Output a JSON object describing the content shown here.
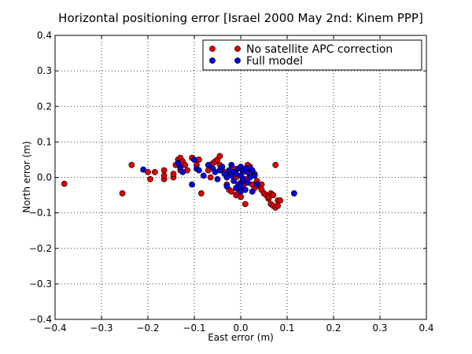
{
  "chart_data": {
    "type": "scatter",
    "title": "Horizontal positioning error [Israel 2000 May 2nd: Kinem PPP]",
    "xlabel": "East error (m)",
    "ylabel": "North error (m)",
    "xlim": [
      -0.4,
      0.4
    ],
    "ylim": [
      -0.4,
      0.4
    ],
    "xticks": [
      -0.4,
      -0.3,
      -0.2,
      -0.1,
      0.0,
      0.1,
      0.2,
      0.3,
      0.4
    ],
    "yticks": [
      -0.4,
      -0.3,
      -0.2,
      -0.1,
      0.0,
      0.1,
      0.2,
      0.3,
      0.4
    ],
    "xtick_labels": [
      "−0.4",
      "−0.3",
      "−0.2",
      "−0.1",
      "0.0",
      "0.1",
      "0.2",
      "0.3",
      "0.4"
    ],
    "ytick_labels": [
      "−0.4",
      "−0.3",
      "−0.2",
      "−0.1",
      "0.0",
      "0.1",
      "0.2",
      "0.3",
      "0.4"
    ],
    "grid": true,
    "legend_position": "top-right",
    "series": [
      {
        "name": "No satellite APC correction",
        "color": "#dd0000",
        "points": [
          [
            -0.38,
            -0.018
          ],
          [
            -0.255,
            -0.045
          ],
          [
            -0.235,
            0.035
          ],
          [
            -0.2,
            0.015
          ],
          [
            -0.195,
            -0.005
          ],
          [
            -0.185,
            0.015
          ],
          [
            -0.165,
            -0.005
          ],
          [
            -0.165,
            0.005
          ],
          [
            -0.165,
            0.02
          ],
          [
            -0.145,
            0.0
          ],
          [
            -0.145,
            0.01
          ],
          [
            -0.14,
            0.035
          ],
          [
            -0.135,
            0.05
          ],
          [
            -0.13,
            0.055
          ],
          [
            -0.13,
            0.02
          ],
          [
            -0.125,
            0.045
          ],
          [
            -0.12,
            0.035
          ],
          [
            -0.115,
            0.02
          ],
          [
            -0.105,
            0.055
          ],
          [
            -0.095,
            0.035
          ],
          [
            -0.09,
            0.05
          ],
          [
            -0.085,
            -0.045
          ],
          [
            -0.07,
            0.02
          ],
          [
            -0.065,
            0.0
          ],
          [
            -0.06,
            0.04
          ],
          [
            -0.055,
            0.045
          ],
          [
            -0.05,
            0.05
          ],
          [
            -0.045,
            0.06
          ],
          [
            -0.045,
            0.035
          ],
          [
            -0.04,
            0.02
          ],
          [
            -0.035,
            0.015
          ],
          [
            -0.03,
            0.005
          ],
          [
            -0.03,
            -0.02
          ],
          [
            -0.025,
            -0.035
          ],
          [
            -0.02,
            -0.04
          ],
          [
            -0.015,
            0.025
          ],
          [
            -0.01,
            -0.05
          ],
          [
            -0.005,
            -0.03
          ],
          [
            -0.005,
            -0.045
          ],
          [
            0.0,
            -0.015
          ],
          [
            0.0,
            -0.055
          ],
          [
            0.005,
            -0.025
          ],
          [
            0.01,
            -0.075
          ],
          [
            0.015,
            0.035
          ],
          [
            0.02,
            0.005
          ],
          [
            0.025,
            -0.02
          ],
          [
            0.03,
            0.01
          ],
          [
            0.035,
            -0.01
          ],
          [
            0.04,
            -0.025
          ],
          [
            0.045,
            -0.02
          ],
          [
            0.045,
            -0.035
          ],
          [
            0.05,
            -0.045
          ],
          [
            0.055,
            -0.05
          ],
          [
            0.06,
            -0.06
          ],
          [
            0.06,
            -0.055
          ],
          [
            0.065,
            -0.045
          ],
          [
            0.065,
            -0.075
          ],
          [
            0.07,
            -0.08
          ],
          [
            0.07,
            -0.05
          ],
          [
            0.075,
            -0.085
          ],
          [
            0.075,
            0.035
          ],
          [
            0.08,
            -0.065
          ],
          [
            0.08,
            -0.08
          ],
          [
            0.085,
            -0.065
          ],
          [
            0.005,
            0.015
          ],
          [
            -0.02,
            0.01
          ],
          [
            0.02,
            0.03
          ],
          [
            0.01,
            -0.005
          ],
          [
            -0.01,
            0.0
          ],
          [
            0.03,
            -0.03
          ]
        ]
      },
      {
        "name": "Full model",
        "color": "#0000dd",
        "points": [
          [
            -0.21,
            0.022
          ],
          [
            -0.135,
            0.04
          ],
          [
            -0.13,
            0.028
          ],
          [
            -0.125,
            0.015
          ],
          [
            -0.105,
            -0.02
          ],
          [
            -0.1,
            0.05
          ],
          [
            -0.095,
            0.025
          ],
          [
            -0.09,
            0.02
          ],
          [
            -0.08,
            0.005
          ],
          [
            -0.07,
            0.035
          ],
          [
            -0.06,
            0.025
          ],
          [
            -0.055,
            0.015
          ],
          [
            -0.05,
            -0.005
          ],
          [
            -0.045,
            0.02
          ],
          [
            -0.04,
            0.03
          ],
          [
            -0.035,
            0.01
          ],
          [
            -0.03,
            0.0
          ],
          [
            -0.03,
            -0.025
          ],
          [
            -0.025,
            0.02
          ],
          [
            -0.02,
            0.035
          ],
          [
            -0.02,
            0.005
          ],
          [
            -0.015,
            -0.01
          ],
          [
            -0.015,
            0.015
          ],
          [
            -0.01,
            -0.03
          ],
          [
            -0.005,
            0.025
          ],
          [
            -0.005,
            -0.02
          ],
          [
            0.0,
            0.03
          ],
          [
            0.0,
            0.005
          ],
          [
            0.0,
            -0.04
          ],
          [
            0.005,
            -0.01
          ],
          [
            0.005,
            0.02
          ],
          [
            0.01,
            0.025
          ],
          [
            0.01,
            -0.035
          ],
          [
            0.015,
            0.015
          ],
          [
            0.015,
            -0.015
          ],
          [
            0.02,
            0.0
          ],
          [
            0.02,
            0.025
          ],
          [
            0.025,
            0.02
          ],
          [
            0.025,
            -0.04
          ],
          [
            0.03,
            0.005
          ],
          [
            0.035,
            -0.02
          ],
          [
            0.005,
            -0.005
          ],
          [
            -0.01,
            0.01
          ],
          [
            0.0,
            -0.025
          ],
          [
            0.115,
            -0.045
          ]
        ]
      }
    ]
  }
}
